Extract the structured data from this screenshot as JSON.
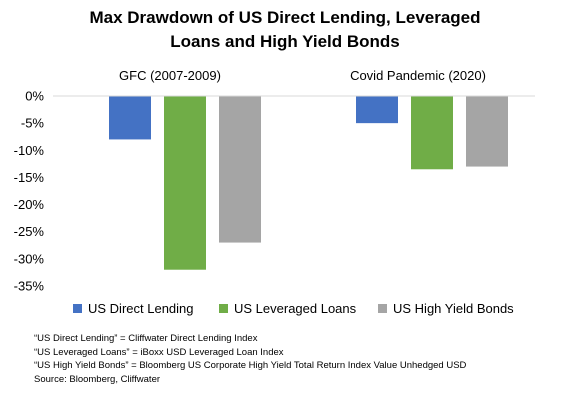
{
  "title_line1": "Max Drawdown of US Direct Lending, Leveraged",
  "title_line2": "Loans and High Yield Bonds",
  "legend": [
    {
      "label": "US Direct Lending",
      "color": "#4472C4"
    },
    {
      "label": "US Leveraged Loans",
      "color": "#70AD47"
    },
    {
      "label": "US High Yield Bonds",
      "color": "#A5A5A5"
    }
  ],
  "notes": [
    "“US Direct Lending” = Cliffwater Direct Lending Index",
    "“US Leveraged Loans” = iBoxx USD Leveraged Loan Index",
    "“US High Yield Bonds” = Bloomberg US Corporate High Yield Total Return Index Value Unhedged USD",
    "Source: Bloomberg, Cliffwater"
  ],
  "chart_data": {
    "type": "bar",
    "categories": [
      "GFC (2007-2009)",
      "Covid Pandemic (2020)"
    ],
    "series": [
      {
        "name": "US Direct Lending",
        "values": [
          -8,
          -5
        ],
        "color": "#4472C4"
      },
      {
        "name": "US Leveraged Loans",
        "values": [
          -32,
          -13.5
        ],
        "color": "#70AD47"
      },
      {
        "name": "US High Yield Bonds",
        "values": [
          -27,
          -13
        ],
        "color": "#A5A5A5"
      }
    ],
    "yticks": [
      "0%",
      "-5%",
      "-10%",
      "-15%",
      "-20%",
      "-25%",
      "-30%",
      "-35%"
    ],
    "ylim": [
      -35,
      0
    ],
    "category_labels_position": "top",
    "grid": false,
    "legend_position": "bottom"
  }
}
